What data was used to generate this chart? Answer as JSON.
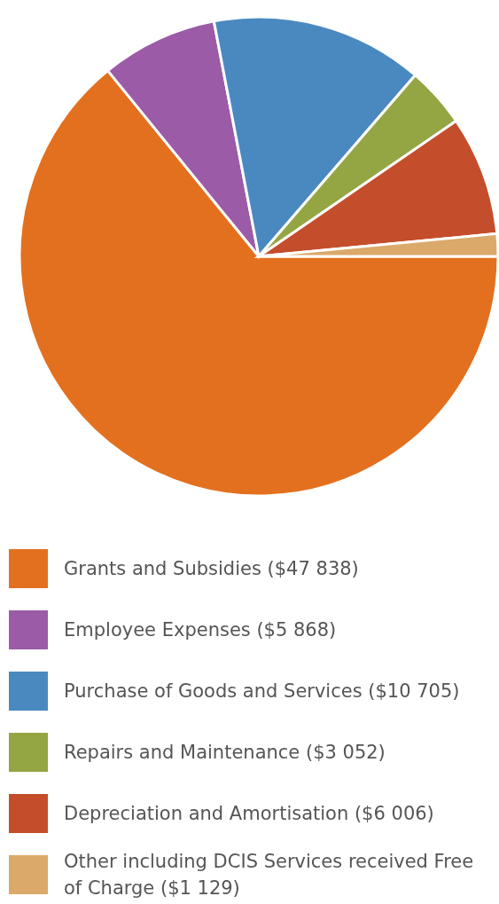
{
  "chart_data": {
    "type": "pie",
    "categories": [
      "Grants and Subsidies ($47 838)",
      "Employee Expenses ($5 868)",
      "Purchase of Goods and Services ($10 705)",
      "Repairs and Maintenance ($3 052)",
      "Depreciation and Amortisation ($6 006)",
      "Other including DCIS Services received Free of Charge ($1 129)"
    ],
    "values": [
      47838,
      5868,
      10705,
      3052,
      6006,
      1129
    ],
    "colors": [
      "#e3701f",
      "#9b5ba6",
      "#4a89c0",
      "#94a643",
      "#c44d2b",
      "#dba96a"
    ],
    "legend": "bottom"
  }
}
